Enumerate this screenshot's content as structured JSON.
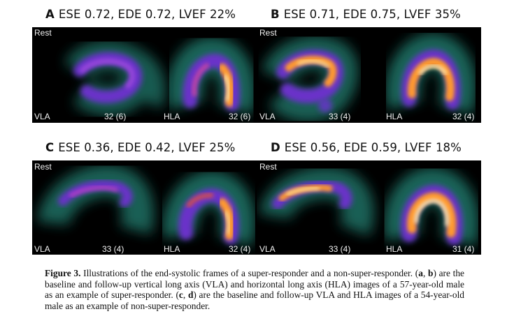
{
  "panels": [
    {
      "letter": "A",
      "title": "ESE 0.72, EDE 0.72, LVEF 22%",
      "rest": "Rest",
      "vla": "VLA",
      "vla_count": "32 (6)",
      "hla": "HLA",
      "hla_count": "32 (6)"
    },
    {
      "letter": "B",
      "title": "ESE 0.71, EDE 0.75, LVEF 35%",
      "rest": "Rest",
      "vla": "VLA",
      "vla_count": "33 (4)",
      "hla": "HLA",
      "hla_count": "32 (4)"
    },
    {
      "letter": "C",
      "title": "ESE 0.36, EDE 0.42, LVEF 25%",
      "rest": "Rest",
      "vla": "VLA",
      "vla_count": "33 (4)",
      "hla": "HLA",
      "hla_count": "32 (4)"
    },
    {
      "letter": "D",
      "title": "ESE 0.56, EDE 0.59, LVEF 18%",
      "rest": "Rest",
      "vla": "VLA",
      "vla_count": "33 (4)",
      "hla": "HLA",
      "hla_count": "31 (4)"
    }
  ],
  "caption": {
    "figure_label": "Figure 3.",
    "t1": " Illustrations of the end-systolic frames of a super-responder and a non-super-responder. (",
    "a": "a",
    "t2": ", ",
    "b": "b",
    "t3": ") are the baseline and follow-up vertical long axis (VLA) and horizontal long axis (HLA) images of a 57-year-old male as an example of super-responder. (",
    "c": "c",
    "t4": ", ",
    "d": "d",
    "t5": ") are the baseline and follow-up VLA and HLA images of a 54-year-old male as an example of non-super-responder."
  }
}
